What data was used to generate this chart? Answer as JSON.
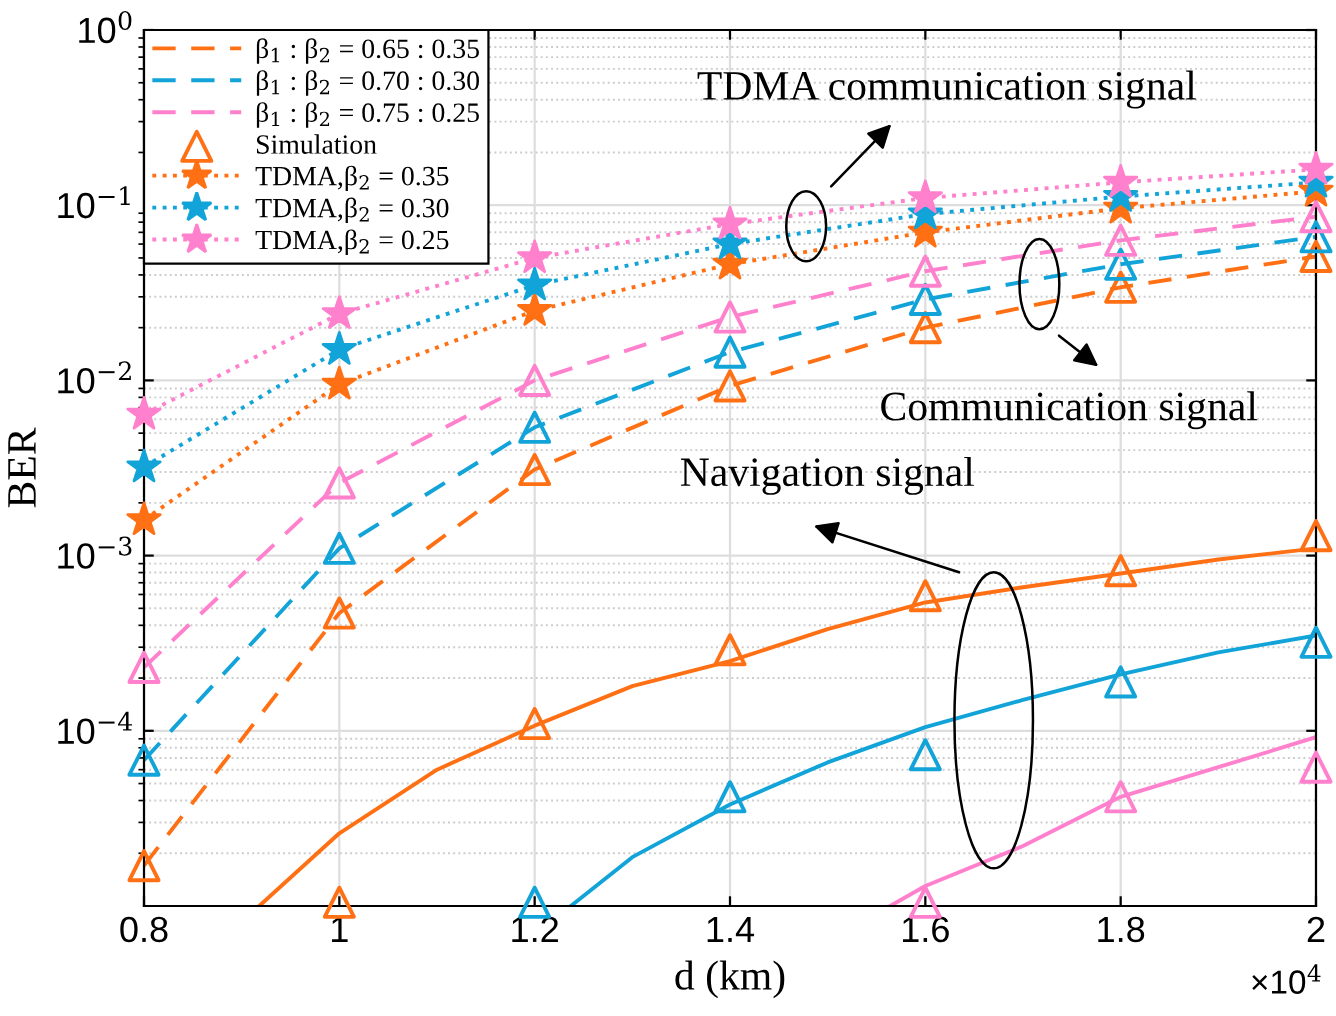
{
  "chart_data": {
    "type": "line",
    "ylabel": "BER",
    "xlabel": "d (km)",
    "xlim": [
      0.8,
      2
    ],
    "xticks": [
      0.8,
      1,
      1.2,
      1.4,
      1.6,
      1.8,
      2
    ],
    "ylim": [
      1e-05,
      1
    ],
    "yticks": [
      {
        "value": 0.0001,
        "label": "10$^{−4}$"
      },
      {
        "value": 0.001,
        "label": "10$^{−3}$"
      },
      {
        "value": 0.01,
        "label": "10$^{−2}$"
      },
      {
        "value": 0.1,
        "label": "10$^{−1}$"
      },
      {
        "value": 1,
        "label": "10$^{0}$"
      }
    ],
    "log": "y",
    "grid": true,
    "legend": "top left",
    "annotations": [
      "TDMA communication signal",
      "Communication signal",
      "Navigation signal",
      "×10$^{4}$"
    ],
    "series": [
      {
        "name": "β$_{1}$ : β$_{2}$ = 0.65 : 0.35",
        "line_style": "dashed",
        "marker": "none",
        "color": "#ff7014",
        "x": [
          0.8,
          1,
          1.2,
          1.4,
          1.6,
          1.8,
          2
        ],
        "values": [
          1.7e-05,
          0.00047,
          0.0031,
          0.0093,
          0.02,
          0.034,
          0.051
        ]
      },
      {
        "name": "β$_{1}$ : β$_{2}$ = 0.70 : 0.30",
        "line_style": "dashed",
        "marker": "none",
        "color": "#12a4d8",
        "x": [
          0.8,
          1,
          1.2,
          1.4,
          1.6,
          1.8,
          2
        ],
        "values": [
          6.8e-05,
          0.0011,
          0.0054,
          0.0145,
          0.029,
          0.046,
          0.066
        ]
      },
      {
        "name": "β$_{1}$ : β$_{2}$ = 0.75 : 0.25",
        "line_style": "dashed",
        "marker": "none",
        "color": "#ff80cc",
        "x": [
          0.8,
          1,
          1.2,
          1.4,
          1.6,
          1.8,
          2
        ],
        "values": [
          0.00023,
          0.0026,
          0.01,
          0.023,
          0.042,
          0.063,
          0.086
        ]
      },
      {
        "name": "Simulation",
        "type": "scatter",
        "marker": "triangle",
        "color": "#ff7014",
        "x": [
          0.8,
          1,
          1.2,
          1.4,
          1.6,
          1.8,
          2,
          1,
          1.2,
          1.4,
          1.6,
          1.8,
          2
        ],
        "values": [
          1.7e-05,
          0.00047,
          0.0031,
          0.0093,
          0.02,
          0.034,
          0.051,
          1.05e-05,
          0.00011,
          0.00029,
          0.00059,
          0.00082,
          0.0013
        ]
      },
      {
        "name": "TDMA,β$_{2}$ = 0.35",
        "line_style": "dotted",
        "marker": "star",
        "color": "#ff7014",
        "x": [
          0.8,
          1,
          1.2,
          1.4,
          1.6,
          1.8,
          2
        ],
        "values": [
          0.0016,
          0.0095,
          0.025,
          0.046,
          0.07,
          0.096,
          0.12
        ]
      },
      {
        "name": "TDMA,β$_{2}$ = 0.30",
        "line_style": "dotted",
        "marker": "star",
        "color": "#12a4d8",
        "x": [
          0.8,
          1,
          1.2,
          1.4,
          1.6,
          1.8,
          2
        ],
        "values": [
          0.0032,
          0.015,
          0.035,
          0.06,
          0.089,
          0.112,
          0.135
        ]
      },
      {
        "name": "TDMA,β$_{2}$ = 0.25",
        "line_style": "dotted",
        "marker": "star",
        "color": "#ff80cc",
        "x": [
          0.8,
          1,
          1.2,
          1.4,
          1.6,
          1.8,
          2
        ],
        "values": [
          0.0064,
          0.024,
          0.05,
          0.078,
          0.11,
          0.135,
          0.16
        ]
      },
      {
        "line_style": "solid",
        "marker": "none",
        "color": "#ff7014",
        "x": [
          0.918,
          1,
          1.1,
          1.2,
          1.3,
          1.4,
          1.5,
          1.6,
          1.7,
          1.8,
          1.9,
          2
        ],
        "values": [
          1e-05,
          2.6e-05,
          6e-05,
          0.000107,
          0.00018,
          0.00025,
          0.00038,
          0.00054,
          0.00066,
          0.00079,
          0.00095,
          0.0011
        ]
      },
      {
        "line_style": "solid",
        "marker": "none",
        "color": "#12a4d8",
        "x": [
          1.237,
          1.3,
          1.4,
          1.5,
          1.6,
          1.7,
          1.8,
          1.9,
          2
        ],
        "values": [
          1e-05,
          1.9e-05,
          3.8e-05,
          6.6e-05,
          0.000105,
          0.00015,
          0.00021,
          0.00028,
          0.00035
        ]
      },
      {
        "line_style": "solid",
        "marker": "none",
        "color": "#ff80cc",
        "x": [
          1.564,
          1.6,
          1.7,
          1.8,
          1.9,
          2
        ],
        "values": [
          1e-05,
          1.3e-05,
          2.2e-05,
          4.2e-05,
          6.2e-05,
          9.2e-05
        ]
      },
      {
        "type": "scatter",
        "marker": "triangle",
        "color": "#12a4d8",
        "x": [
          0.8,
          1,
          1.2,
          1.4,
          1.6,
          1.8,
          2,
          1.2,
          1.4,
          1.6,
          1.8,
          2
        ],
        "values": [
          6.8e-05,
          0.0011,
          0.0054,
          0.0145,
          0.029,
          0.046,
          0.066,
          1.05e-05,
          4.2e-05,
          7.3e-05,
          0.00019,
          0.00032
        ]
      },
      {
        "type": "scatter",
        "marker": "triangle",
        "color": "#ff80cc",
        "x": [
          0.8,
          1,
          1.2,
          1.4,
          1.6,
          1.8,
          2,
          1.6,
          1.8,
          2
        ],
        "values": [
          0.00023,
          0.0026,
          0.01,
          0.023,
          0.042,
          0.063,
          0.086,
          1.05e-05,
          4.2e-05,
          6.2e-05
        ]
      }
    ]
  }
}
